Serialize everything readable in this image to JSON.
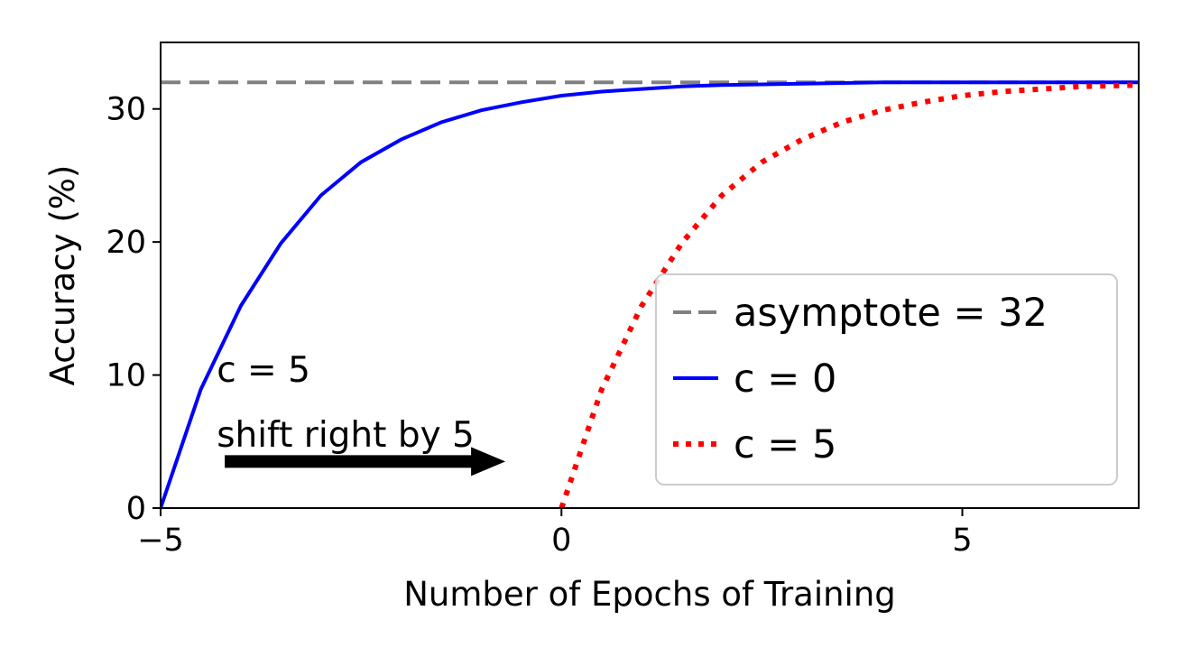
{
  "chart_data": {
    "type": "line",
    "title": "",
    "xlabel": "Number of Epochs of Training",
    "ylabel": "Accuracy (%)",
    "xlim": [
      -5,
      7.2
    ],
    "ylim": [
      0,
      35
    ],
    "xticks": [
      -5,
      0,
      5
    ],
    "xtick_labels": [
      "−5",
      "0",
      "5"
    ],
    "yticks": [
      0,
      10,
      20,
      30
    ],
    "ytick_labels": [
      "0",
      "10",
      "20",
      "30"
    ],
    "grid": false,
    "legend_position": "lower-right",
    "series": [
      {
        "name": "asymptote = 32",
        "style": "dashed",
        "color": "#808080",
        "x": [
          -5,
          7.2
        ],
        "y": [
          32,
          32
        ]
      },
      {
        "name": "c = 0",
        "style": "solid",
        "color": "#0000ff",
        "x": [
          -5,
          -4.5,
          -4,
          -3.5,
          -3,
          -2.5,
          -2,
          -1.5,
          -1,
          -0.5,
          0,
          0.5,
          1,
          1.5,
          2,
          3,
          4,
          5,
          6,
          7.2
        ],
        "y": [
          0,
          8.9,
          15.2,
          19.9,
          23.5,
          26,
          27.7,
          29,
          29.9,
          30.5,
          31,
          31.3,
          31.5,
          31.7,
          31.8,
          31.9,
          32,
          32,
          32,
          32
        ]
      },
      {
        "name": "c = 5",
        "style": "dotted",
        "color": "#ff0000",
        "x": [
          0,
          0.5,
          1,
          1.5,
          2,
          2.5,
          3,
          3.5,
          4,
          4.5,
          5,
          5.5,
          6,
          6.5,
          7.2
        ],
        "y": [
          0,
          8.9,
          15.2,
          19.9,
          23.5,
          26,
          27.7,
          29,
          29.9,
          30.5,
          31,
          31.3,
          31.5,
          31.7,
          31.8
        ]
      }
    ],
    "annotations": [
      {
        "text": "c = 5",
        "x": -4.3,
        "y": 9.5
      },
      {
        "text": "shift right by 5",
        "x": -4.3,
        "y": 4.6
      }
    ],
    "arrow": {
      "x_start": -4.2,
      "x_end": -0.7,
      "y": 3.5
    }
  }
}
